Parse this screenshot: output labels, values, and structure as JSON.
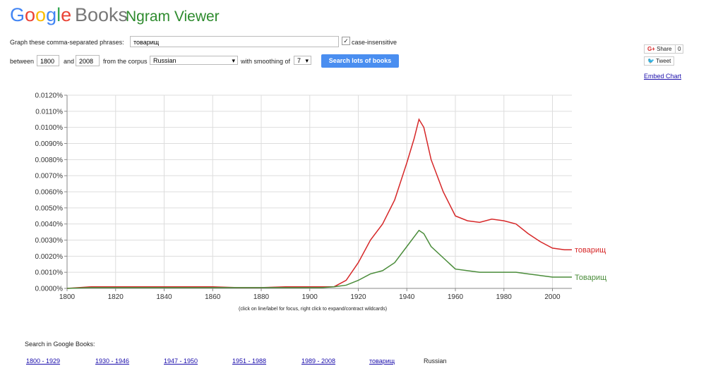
{
  "header": {
    "logo": "Google",
    "product": "Books",
    "app": "Ngram Viewer"
  },
  "form": {
    "phrases_label": "Graph these comma-separated phrases:",
    "phrases": "товарищ",
    "case_label": "case-insensitive",
    "between": "between",
    "start": "1800",
    "and": "and",
    "end": "2008",
    "corpus_label": "from the corpus",
    "corpus": "Russian",
    "smoothing_label": "with smoothing of",
    "smoothing": "7",
    "button": "Search lots of books"
  },
  "social": {
    "share": "Share",
    "share_count": "0",
    "tweet": "Tweet",
    "embed": "Embed Chart"
  },
  "chart_data": {
    "type": "line",
    "x": [
      1800,
      1810,
      1820,
      1830,
      1840,
      1850,
      1860,
      1870,
      1880,
      1890,
      1900,
      1905,
      1910,
      1915,
      1920,
      1925,
      1930,
      1935,
      1940,
      1943,
      1945,
      1947,
      1950,
      1955,
      1960,
      1965,
      1970,
      1975,
      1980,
      1985,
      1990,
      1995,
      2000,
      2005,
      2008
    ],
    "series": [
      {
        "name": "товарищ",
        "color": "#d62728",
        "values": [
          0,
          0.0001,
          0.0001,
          0.0001,
          0.0001,
          0.0001,
          0.0001,
          5e-05,
          5e-05,
          0.0001,
          0.0001,
          0.0001,
          0.0001,
          0.0005,
          0.0016,
          0.003,
          0.004,
          0.0055,
          0.0078,
          0.0093,
          0.0105,
          0.01,
          0.008,
          0.006,
          0.0045,
          0.0042,
          0.0041,
          0.0043,
          0.0042,
          0.004,
          0.0034,
          0.0029,
          0.0025,
          0.0024,
          0.0024
        ]
      },
      {
        "name": "Товарищ",
        "color": "#4a8c3a",
        "values": [
          0,
          5e-05,
          5e-05,
          5e-05,
          5e-05,
          5e-05,
          5e-05,
          5e-05,
          5e-05,
          5e-05,
          5e-05,
          5e-05,
          0.0001,
          0.0002,
          0.0005,
          0.0009,
          0.0011,
          0.0016,
          0.0026,
          0.0032,
          0.0036,
          0.0034,
          0.0026,
          0.0019,
          0.0012,
          0.0011,
          0.001,
          0.001,
          0.001,
          0.001,
          0.0009,
          0.0008,
          0.0007,
          0.0007,
          0.0007
        ]
      }
    ],
    "xlim": [
      1800,
      2008
    ],
    "xticks": [
      1800,
      1820,
      1840,
      1860,
      1880,
      1900,
      1920,
      1940,
      1960,
      1980,
      2000
    ],
    "ylim": [
      0,
      0.012
    ],
    "yticks": [
      {
        "value": 0,
        "label": "0.0000%"
      },
      {
        "value": 0.001,
        "label": "0.0010%"
      },
      {
        "value": 0.002,
        "label": "0.0020%"
      },
      {
        "value": 0.003,
        "label": "0.0030%"
      },
      {
        "value": 0.004,
        "label": "0.0040%"
      },
      {
        "value": 0.005,
        "label": "0.0050%"
      },
      {
        "value": 0.006,
        "label": "0.0060%"
      },
      {
        "value": 0.007,
        "label": "0.0070%"
      },
      {
        "value": 0.008,
        "label": "0.0080%"
      },
      {
        "value": 0.009,
        "label": "0.0090%"
      },
      {
        "value": 0.01,
        "label": "0.0100%"
      },
      {
        "value": 0.011,
        "label": "0.0110%"
      },
      {
        "value": 0.012,
        "label": "0.0120%"
      }
    ],
    "grid": true,
    "note": "(click on line/label for focus, right click to expand/contract wildcards)"
  },
  "search": {
    "label": "Search in Google Books:",
    "links": [
      "1800 - 1929",
      "1930 - 1946",
      "1947 - 1950",
      "1951 - 1988",
      "1989 - 2008",
      "товарищ"
    ],
    "corpus": "Russian"
  }
}
